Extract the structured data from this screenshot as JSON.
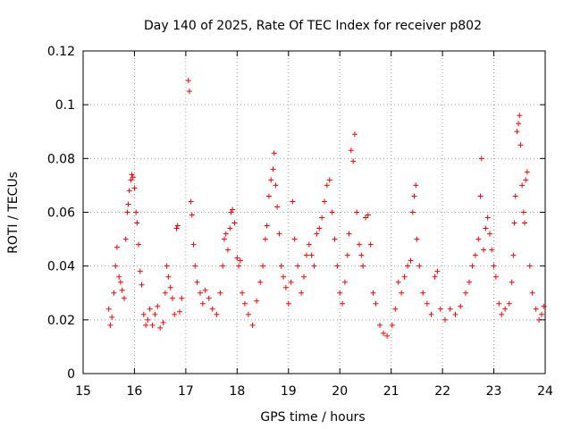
{
  "chart_data": {
    "type": "scatter",
    "title": "Day 140 of 2025, Rate Of TEC Index for receiver p802",
    "xlabel": "GPS time / hours",
    "ylabel": "ROTI / TECUs",
    "xlim": [
      15,
      24
    ],
    "ylim": [
      0,
      0.12
    ],
    "xticks": [
      15,
      16,
      17,
      18,
      19,
      20,
      21,
      22,
      23,
      24
    ],
    "yticks": [
      0,
      0.02,
      0.04,
      0.06,
      0.08,
      0.1,
      0.12
    ],
    "xtick_labels": [
      "15",
      "16",
      "17",
      "18",
      "19",
      "20",
      "21",
      "22",
      "23",
      "24"
    ],
    "ytick_labels": [
      "0",
      "0.02",
      "0.04",
      "0.06",
      "0.08",
      "0.1",
      "0.12"
    ],
    "grid": true,
    "marker": "+",
    "color": "#ff0000",
    "series": [
      {
        "name": "ROTI",
        "points": [
          [
            15.5,
            0.024
          ],
          [
            15.53,
            0.018
          ],
          [
            15.56,
            0.021
          ],
          [
            15.6,
            0.03
          ],
          [
            15.63,
            0.04
          ],
          [
            15.66,
            0.047
          ],
          [
            15.7,
            0.036
          ],
          [
            15.73,
            0.034
          ],
          [
            15.76,
            0.031
          ],
          [
            15.8,
            0.028
          ],
          [
            15.83,
            0.05
          ],
          [
            15.86,
            0.06
          ],
          [
            15.88,
            0.063
          ],
          [
            15.9,
            0.068
          ],
          [
            15.93,
            0.072
          ],
          [
            15.95,
            0.074
          ],
          [
            15.97,
            0.073
          ],
          [
            16.0,
            0.069
          ],
          [
            16.03,
            0.06
          ],
          [
            16.05,
            0.056
          ],
          [
            16.08,
            0.048
          ],
          [
            16.11,
            0.038
          ],
          [
            16.14,
            0.033
          ],
          [
            16.18,
            0.022
          ],
          [
            16.22,
            0.018
          ],
          [
            16.26,
            0.02
          ],
          [
            16.3,
            0.024
          ],
          [
            16.35,
            0.018
          ],
          [
            16.4,
            0.022
          ],
          [
            16.45,
            0.025
          ],
          [
            16.5,
            0.017
          ],
          [
            16.56,
            0.019
          ],
          [
            16.6,
            0.03
          ],
          [
            16.63,
            0.04
          ],
          [
            16.66,
            0.036
          ],
          [
            16.7,
            0.032
          ],
          [
            16.74,
            0.028
          ],
          [
            16.78,
            0.022
          ],
          [
            16.82,
            0.054
          ],
          [
            16.84,
            0.055
          ],
          [
            16.88,
            0.023
          ],
          [
            16.92,
            0.028
          ],
          [
            17.05,
            0.109
          ],
          [
            17.07,
            0.105
          ],
          [
            17.1,
            0.064
          ],
          [
            17.12,
            0.059
          ],
          [
            17.15,
            0.048
          ],
          [
            17.18,
            0.04
          ],
          [
            17.22,
            0.034
          ],
          [
            17.28,
            0.03
          ],
          [
            17.33,
            0.026
          ],
          [
            17.38,
            0.031
          ],
          [
            17.45,
            0.028
          ],
          [
            17.52,
            0.024
          ],
          [
            17.6,
            0.022
          ],
          [
            17.67,
            0.03
          ],
          [
            17.72,
            0.04
          ],
          [
            17.75,
            0.05
          ],
          [
            17.78,
            0.052
          ],
          [
            17.82,
            0.046
          ],
          [
            17.86,
            0.054
          ],
          [
            17.88,
            0.06
          ],
          [
            17.91,
            0.061
          ],
          [
            17.95,
            0.056
          ],
          [
            18.0,
            0.043
          ],
          [
            18.03,
            0.04
          ],
          [
            18.06,
            0.042
          ],
          [
            18.1,
            0.03
          ],
          [
            18.15,
            0.026
          ],
          [
            18.22,
            0.022
          ],
          [
            18.3,
            0.018
          ],
          [
            18.38,
            0.027
          ],
          [
            18.45,
            0.034
          ],
          [
            18.5,
            0.04
          ],
          [
            18.55,
            0.05
          ],
          [
            18.58,
            0.055
          ],
          [
            18.62,
            0.066
          ],
          [
            18.66,
            0.072
          ],
          [
            18.7,
            0.076
          ],
          [
            18.72,
            0.082
          ],
          [
            18.75,
            0.07
          ],
          [
            18.78,
            0.062
          ],
          [
            18.82,
            0.052
          ],
          [
            18.86,
            0.04
          ],
          [
            18.9,
            0.036
          ],
          [
            18.95,
            0.032
          ],
          [
            19.0,
            0.026
          ],
          [
            19.05,
            0.034
          ],
          [
            19.08,
            0.064
          ],
          [
            19.12,
            0.05
          ],
          [
            19.18,
            0.04
          ],
          [
            19.25,
            0.03
          ],
          [
            19.3,
            0.036
          ],
          [
            19.35,
            0.044
          ],
          [
            19.4,
            0.048
          ],
          [
            19.45,
            0.044
          ],
          [
            19.5,
            0.04
          ],
          [
            19.55,
            0.052
          ],
          [
            19.6,
            0.054
          ],
          [
            19.65,
            0.058
          ],
          [
            19.7,
            0.064
          ],
          [
            19.75,
            0.07
          ],
          [
            19.8,
            0.072
          ],
          [
            19.85,
            0.06
          ],
          [
            19.9,
            0.05
          ],
          [
            19.95,
            0.04
          ],
          [
            20.0,
            0.03
          ],
          [
            20.05,
            0.026
          ],
          [
            20.1,
            0.034
          ],
          [
            20.15,
            0.044
          ],
          [
            20.18,
            0.052
          ],
          [
            20.22,
            0.083
          ],
          [
            20.26,
            0.079
          ],
          [
            20.29,
            0.089
          ],
          [
            20.33,
            0.06
          ],
          [
            20.38,
            0.048
          ],
          [
            20.42,
            0.044
          ],
          [
            20.45,
            0.04
          ],
          [
            20.5,
            0.058
          ],
          [
            20.55,
            0.059
          ],
          [
            20.6,
            0.048
          ],
          [
            20.65,
            0.03
          ],
          [
            20.7,
            0.026
          ],
          [
            20.78,
            0.018
          ],
          [
            20.85,
            0.015
          ],
          [
            20.92,
            0.014
          ],
          [
            21.02,
            0.018
          ],
          [
            21.08,
            0.024
          ],
          [
            21.14,
            0.034
          ],
          [
            21.2,
            0.03
          ],
          [
            21.26,
            0.036
          ],
          [
            21.32,
            0.04
          ],
          [
            21.38,
            0.042
          ],
          [
            21.42,
            0.06
          ],
          [
            21.45,
            0.066
          ],
          [
            21.48,
            0.07
          ],
          [
            21.5,
            0.05
          ],
          [
            21.55,
            0.04
          ],
          [
            21.62,
            0.03
          ],
          [
            21.7,
            0.026
          ],
          [
            21.78,
            0.022
          ],
          [
            21.85,
            0.036
          ],
          [
            21.9,
            0.038
          ],
          [
            21.96,
            0.024
          ],
          [
            22.05,
            0.02
          ],
          [
            22.15,
            0.024
          ],
          [
            22.25,
            0.022
          ],
          [
            22.35,
            0.025
          ],
          [
            22.45,
            0.03
          ],
          [
            22.52,
            0.034
          ],
          [
            22.58,
            0.04
          ],
          [
            22.64,
            0.044
          ],
          [
            22.7,
            0.05
          ],
          [
            22.74,
            0.066
          ],
          [
            22.76,
            0.08
          ],
          [
            22.8,
            0.046
          ],
          [
            22.84,
            0.054
          ],
          [
            22.88,
            0.058
          ],
          [
            22.92,
            0.052
          ],
          [
            22.96,
            0.046
          ],
          [
            23.0,
            0.04
          ],
          [
            23.04,
            0.036
          ],
          [
            23.1,
            0.026
          ],
          [
            23.15,
            0.022
          ],
          [
            23.22,
            0.024
          ],
          [
            23.3,
            0.026
          ],
          [
            23.35,
            0.034
          ],
          [
            23.38,
            0.044
          ],
          [
            23.4,
            0.056
          ],
          [
            23.42,
            0.066
          ],
          [
            23.45,
            0.09
          ],
          [
            23.48,
            0.093
          ],
          [
            23.5,
            0.096
          ],
          [
            23.52,
            0.085
          ],
          [
            23.55,
            0.07
          ],
          [
            23.58,
            0.06
          ],
          [
            23.6,
            0.056
          ],
          [
            23.62,
            0.072
          ],
          [
            23.65,
            0.075
          ],
          [
            23.7,
            0.04
          ],
          [
            23.75,
            0.03
          ],
          [
            23.82,
            0.024
          ],
          [
            23.88,
            0.02
          ],
          [
            23.93,
            0.022
          ],
          [
            23.97,
            0.025
          ]
        ]
      }
    ]
  }
}
